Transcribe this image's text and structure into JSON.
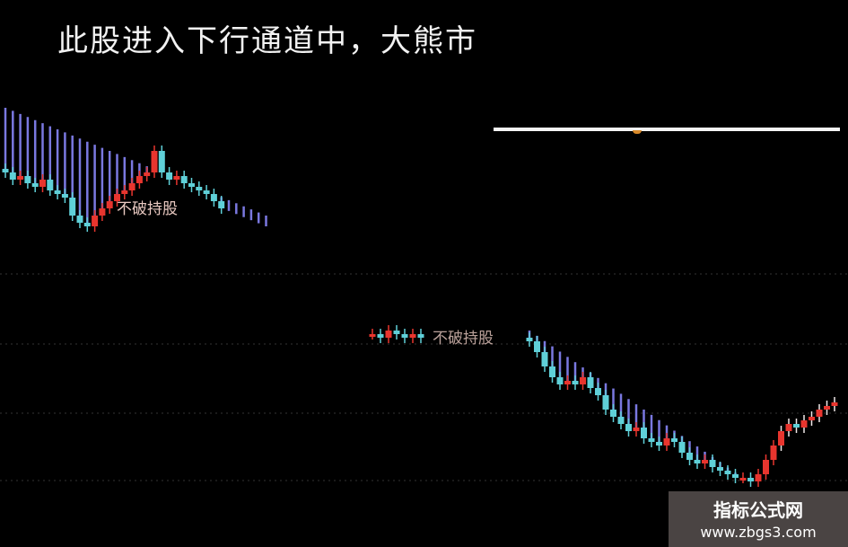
{
  "title": "此股进入下行通道中，大熊市",
  "labels": {
    "left": "不破持股",
    "middle": "不破持股"
  },
  "watermark": {
    "name": "指标公式网",
    "url": "www.zbgs3.com"
  },
  "colors": {
    "up": "#e8352e",
    "down": "#5fd0d8",
    "channel": "#7a78e0",
    "background": "#000000"
  },
  "chart_data": {
    "type": "candlestick",
    "title": "",
    "segments": [
      {
        "open": 93,
        "closes": [
          92,
          90,
          91,
          89,
          88,
          90,
          87,
          86,
          85,
          80,
          78,
          77,
          80,
          82,
          84,
          86,
          87,
          89,
          91,
          92,
          98,
          92,
          90,
          91,
          89,
          88,
          87,
          86,
          84,
          82
        ],
        "channel_top": [
          110,
          80
        ]
      },
      {
        "open": 47,
        "closes": [
          47,
          46,
          48,
          47,
          46,
          47,
          46
        ]
      },
      {
        "open": 46,
        "closes": [
          45,
          42,
          38,
          35,
          33,
          34,
          33,
          35,
          32,
          30,
          26,
          24,
          22,
          20,
          21,
          18,
          17,
          16,
          18,
          17,
          14,
          12,
          11,
          12,
          10,
          9,
          8,
          7,
          7,
          6,
          8,
          12,
          16,
          20,
          22,
          21,
          23,
          24,
          26,
          27,
          28
        ],
        "channel_top": [
          48,
          4
        ]
      }
    ]
  }
}
